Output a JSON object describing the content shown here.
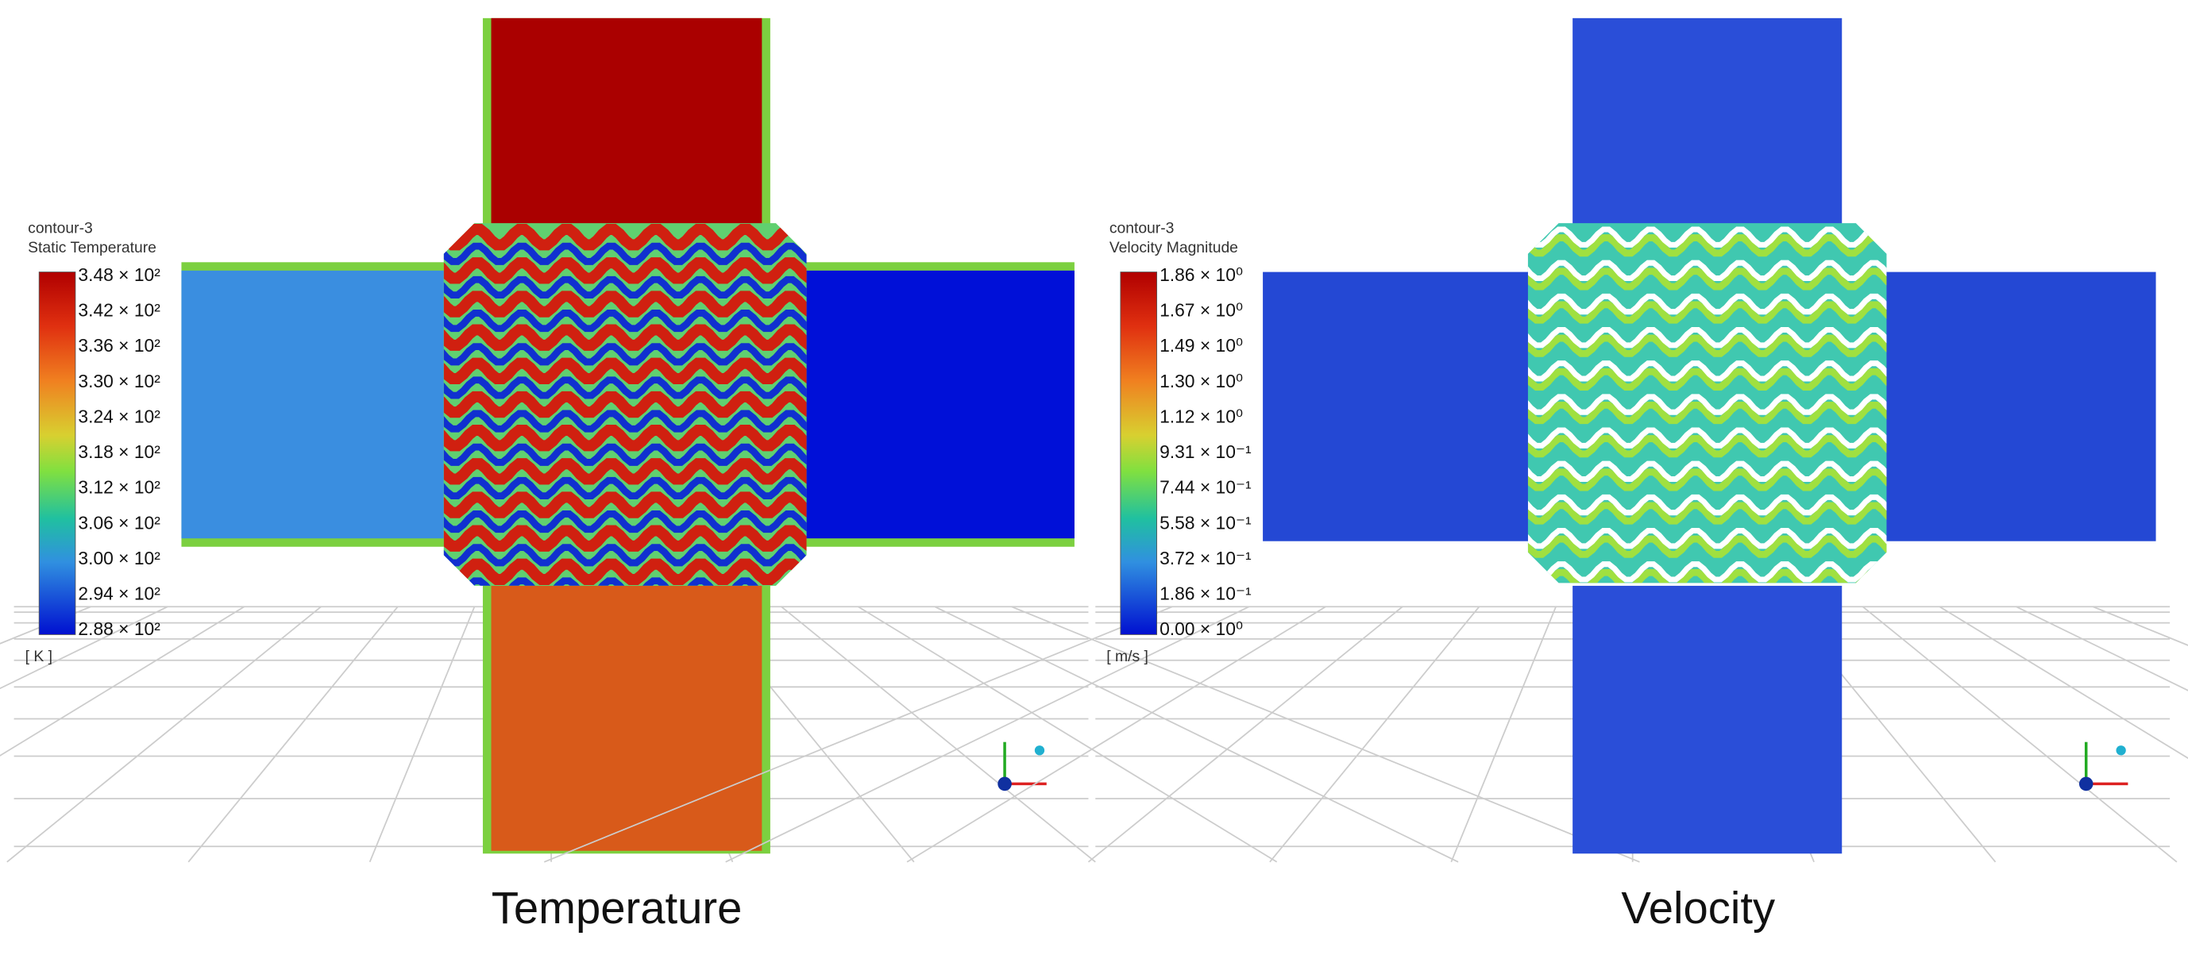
{
  "panels": [
    {
      "legend": {
        "title": "contour-3",
        "variable": "Static Temperature",
        "ticks": [
          "3.48 × 10²",
          "3.42 × 10²",
          "3.36 × 10²",
          "3.30 × 10²",
          "3.24 × 10²",
          "3.18 × 10²",
          "3.12 × 10²",
          "3.06 × 10²",
          "3.00 × 10²",
          "2.94 × 10²",
          "2.88 × 10²"
        ],
        "unit": "[ K ]"
      },
      "caption": "Temperature"
    },
    {
      "legend": {
        "title": "contour-3",
        "variable": "Velocity Magnitude",
        "ticks": [
          "1.86 × 10⁰",
          "1.67 × 10⁰",
          "1.49 × 10⁰",
          "1.30 × 10⁰",
          "1.12 × 10⁰",
          "9.31 × 10⁻¹",
          "7.44 × 10⁻¹",
          "5.58 × 10⁻¹",
          "3.72 × 10⁻¹",
          "1.86 × 10⁻¹",
          "0.00 × 10⁰"
        ],
        "unit": "[ m/s ]"
      },
      "caption": "Velocity"
    }
  ]
}
